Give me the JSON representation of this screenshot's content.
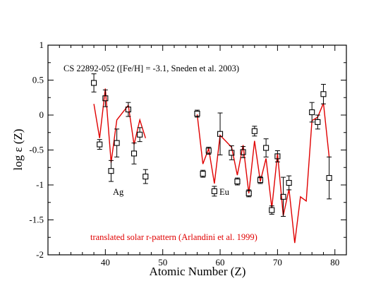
{
  "chart_data": {
    "type": "scatter",
    "xlabel": "Atomic Number (Z)",
    "ylabel": "log ε (Z)",
    "xlim": [
      30,
      82
    ],
    "ylim": [
      -2,
      1
    ],
    "xticks": [
      40,
      50,
      60,
      70,
      80
    ],
    "yticks": [
      -2,
      -1.5,
      -1,
      -0.5,
      0,
      0.5,
      1
    ],
    "xtick_labels": [
      "40",
      "50",
      "60",
      "70",
      "80"
    ],
    "ytick_labels": [
      "-2",
      "-1.5",
      "-1",
      "-0.5",
      "0",
      "0.5",
      "1"
    ],
    "grid": false,
    "annotations": {
      "star": "CS 22892-052 ([Fe/H] = -3.1, Sneden et al. 2003)",
      "ag": "Ag",
      "eu": "Eu",
      "solar": "translated solar r-pattern (Arlandini et al. 1999)"
    },
    "colors": {
      "observed": "#000000",
      "solar": "#e00000"
    },
    "series": [
      {
        "marker": "open-square",
        "points": [
          {
            "x": 38,
            "y": 0.46,
            "err": 0.13
          },
          {
            "x": 39,
            "y": -0.42,
            "err": 0.07
          },
          {
            "x": 40,
            "y": 0.24,
            "err": 0.12
          },
          {
            "x": 41,
            "y": -0.8,
            "err": 0.15
          },
          {
            "x": 42,
            "y": -0.4,
            "err": 0.2
          },
          {
            "x": 44,
            "y": 0.08,
            "err": 0.1
          },
          {
            "x": 45,
            "y": -0.55,
            "err": 0.15
          },
          {
            "x": 46,
            "y": -0.28,
            "err": 0.1
          },
          {
            "x": 47,
            "y": -0.88,
            "err": 0.1
          },
          {
            "x": 56,
            "y": 0.02,
            "err": 0.05
          },
          {
            "x": 57,
            "y": -0.84,
            "err": 0.05
          },
          {
            "x": 58,
            "y": -0.51,
            "err": 0.05
          },
          {
            "x": 59,
            "y": -1.09,
            "err": 0.07
          },
          {
            "x": 60,
            "y": -0.27,
            "err": 0.3
          },
          {
            "x": 62,
            "y": -0.54,
            "err": 0.1
          },
          {
            "x": 63,
            "y": -0.95,
            "err": 0.05
          },
          {
            "x": 64,
            "y": -0.53,
            "err": 0.08
          },
          {
            "x": 65,
            "y": -1.12,
            "err": 0.05
          },
          {
            "x": 66,
            "y": -0.23,
            "err": 0.07
          },
          {
            "x": 67,
            "y": -0.93,
            "err": 0.05
          },
          {
            "x": 68,
            "y": -0.47,
            "err": 0.13
          },
          {
            "x": 69,
            "y": -1.36,
            "err": 0.06
          },
          {
            "x": 70,
            "y": -0.59,
            "err": 0.08
          },
          {
            "x": 71,
            "y": -1.17,
            "err": 0.28
          },
          {
            "x": 72,
            "y": -0.97,
            "err": 0.1
          },
          {
            "x": 76,
            "y": 0.04,
            "err": 0.14
          },
          {
            "x": 77,
            "y": -0.1,
            "err": 0.1
          },
          {
            "x": 78,
            "y": 0.3,
            "err": 0.14
          },
          {
            "x": 79,
            "y": -0.9,
            "err": 0.3
          }
        ]
      },
      {
        "line": true,
        "segments": [
          [
            {
              "x": 38,
              "y": 0.16
            },
            {
              "x": 39,
              "y": -0.33
            },
            {
              "x": 40,
              "y": 0.38
            },
            {
              "x": 41,
              "y": -0.68
            },
            {
              "x": 42,
              "y": -0.07
            },
            {
              "x": 44,
              "y": 0.14
            },
            {
              "x": 45,
              "y": -0.42
            },
            {
              "x": 46,
              "y": -0.07
            },
            {
              "x": 47,
              "y": -0.33
            }
          ],
          [
            {
              "x": 56,
              "y": 0.01
            },
            {
              "x": 57,
              "y": -0.7
            },
            {
              "x": 58,
              "y": -0.48
            },
            {
              "x": 59,
              "y": -0.98
            },
            {
              "x": 60,
              "y": -0.29
            },
            {
              "x": 62,
              "y": -0.46
            },
            {
              "x": 63,
              "y": -0.86
            },
            {
              "x": 64,
              "y": -0.43
            },
            {
              "x": 65,
              "y": -1.12
            },
            {
              "x": 66,
              "y": -0.37
            },
            {
              "x": 67,
              "y": -0.95
            },
            {
              "x": 68,
              "y": -0.62
            },
            {
              "x": 69,
              "y": -1.33
            },
            {
              "x": 70,
              "y": -0.55
            },
            {
              "x": 71,
              "y": -1.44
            },
            {
              "x": 72,
              "y": -1.06
            },
            {
              "x": 73,
              "y": -1.83
            },
            {
              "x": 74,
              "y": -1.17
            },
            {
              "x": 75,
              "y": -1.23
            },
            {
              "x": 76,
              "y": -0.08
            },
            {
              "x": 77,
              "y": -0.03
            },
            {
              "x": 78,
              "y": 0.17
            },
            {
              "x": 79,
              "y": -0.6
            }
          ]
        ]
      }
    ]
  }
}
